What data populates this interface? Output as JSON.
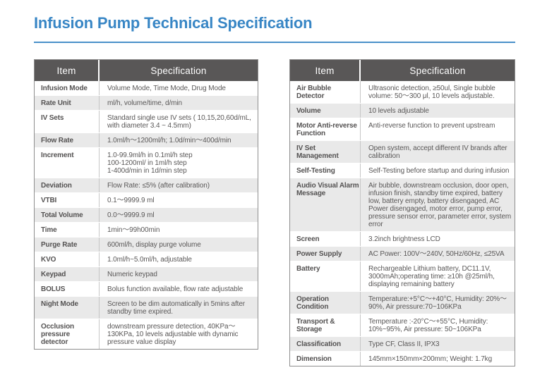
{
  "page": {
    "title": "Infusion Pump Technical Specification",
    "accent_color": "#3886c5",
    "header_bg_color": "#595757",
    "alt_row_color": "#e9e9e9",
    "text_color": "#5a5858"
  },
  "tables": [
    {
      "id": "left",
      "headers": [
        "Item",
        "Specification"
      ],
      "rows": [
        {
          "item": [
            "Infusion Mode"
          ],
          "spec": [
            "Volume Mode, Time Mode, Drug Mode"
          ]
        },
        {
          "item": [
            "Rate Unit"
          ],
          "spec": [
            "ml/h, volume/time, d/min"
          ]
        },
        {
          "item": [
            "IV Sets"
          ],
          "spec": [
            "Standard single use IV sets ( 10,15,20,60d/mL, with diameter 3.4 ~ 4.5mm)"
          ]
        },
        {
          "item": [
            "Flow Rate"
          ],
          "spec": [
            "1.0ml/h～1200ml/h; 1.0d/min～400d/min"
          ]
        },
        {
          "item": [
            "Increment"
          ],
          "spec": [
            "1.0-99.9ml/h in 0.1ml/h step",
            "100-1200ml/ in 1ml/h step",
            "1-400d/min in 1d/min step"
          ]
        },
        {
          "item": [
            "Deviation"
          ],
          "spec": [
            "Flow Rate: ≤5% (after calibration)"
          ]
        },
        {
          "item": [
            "VTBI"
          ],
          "spec": [
            "0.1～9999.9 ml"
          ]
        },
        {
          "item": [
            "Total Volume"
          ],
          "spec": [
            "0.0～9999.9 ml"
          ]
        },
        {
          "item": [
            "Time"
          ],
          "spec": [
            "1min～99h00min"
          ]
        },
        {
          "item": [
            "Purge Rate"
          ],
          "spec": [
            "600ml/h, display purge volume"
          ]
        },
        {
          "item": [
            "KVO"
          ],
          "spec": [
            "1.0ml/h~5.0ml/h, adjustable"
          ]
        },
        {
          "item": [
            "Keypad"
          ],
          "spec": [
            "Numeric keypad"
          ]
        },
        {
          "item": [
            "BOLUS"
          ],
          "spec": [
            "Bolus function available, flow rate adjustable"
          ]
        },
        {
          "item": [
            "Night Mode"
          ],
          "spec": [
            "Screen to be dim automatically in 5mins after standby time expired."
          ]
        },
        {
          "item": [
            "Occlusion",
            "pressure",
            "detector"
          ],
          "spec": [
            "downstream pressure detection, 40KPa～130KPa, 10 levels adjustable with dynamic pressure value display"
          ]
        }
      ]
    },
    {
      "id": "right",
      "headers": [
        "Item",
        "Specification"
      ],
      "rows": [
        {
          "item": [
            "Air Bubble",
            "Detector"
          ],
          "spec": [
            "Ultrasonic detection, ≥50ul, Single bubble volume: 50～300 μl, 10 levels adjustable."
          ]
        },
        {
          "item": [
            "Volume"
          ],
          "spec": [
            "10 levels adjustable"
          ]
        },
        {
          "item": [
            "Motor Anti-reverse",
            "Function"
          ],
          "spec": [
            "Anti-reverse function to prevent upstream"
          ]
        },
        {
          "item": [
            "IV Set",
            "Management"
          ],
          "spec": [
            "Open system, accept different IV brands after calibration"
          ]
        },
        {
          "item": [
            "Self-Testing"
          ],
          "spec": [
            "Self-Testing before startup and during infusion"
          ]
        },
        {
          "item": [
            "Audio Visual Alarm",
            "Message"
          ],
          "spec": [
            "Air bubble, downstream occlusion, door open, infusion finish, standby time expired, battery low, battery empty, battery disengaged, AC Power disengaged, motor error, pump error, pressure sensor error, parameter error, system error"
          ]
        },
        {
          "item": [
            "Screen"
          ],
          "spec": [
            "3.2inch brightness LCD"
          ]
        },
        {
          "item": [
            "Power Supply"
          ],
          "spec": [
            "AC Power: 100V～240V, 50Hz/60Hz, ≤25VA"
          ]
        },
        {
          "item": [
            "Battery"
          ],
          "spec": [
            "Rechargeable Lithium battery, DC11.1V, 3000mAh;operating time: ≥10h @25ml/h, displaying remaining battery"
          ]
        },
        {
          "item": [
            "Operation",
            "Condition"
          ],
          "spec": [
            "Temperature:+5°C～+40°C, Humidity: 20%～90%, Air pressure:70~106KPa"
          ]
        },
        {
          "item": [
            "Transport &",
            "Storage"
          ],
          "spec": [
            "Temperature :-20°C～+55°C, Humidity: 10%~95%, Air pressure: 50~106KPa"
          ]
        },
        {
          "item": [
            "Classification"
          ],
          "spec": [
            "Type CF, Class II, IPX3"
          ]
        },
        {
          "item": [
            "Dimension"
          ],
          "spec": [
            "145mm×150mm×200mm; Weight: 1.7kg"
          ]
        }
      ]
    }
  ]
}
